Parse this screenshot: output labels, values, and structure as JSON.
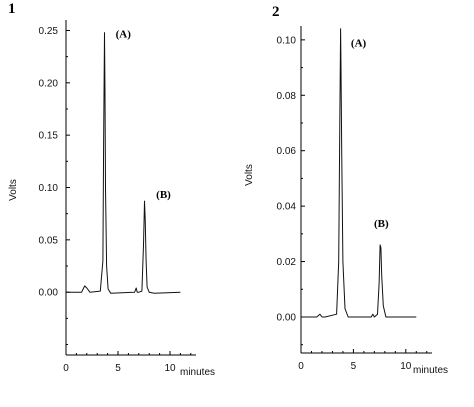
{
  "chart_data": [
    {
      "type": "line",
      "panel_label": "1",
      "xlabel": "minutes",
      "ylabel": "Volts",
      "xlim": [
        0,
        12.5
      ],
      "ylim": [
        -0.06,
        0.26
      ],
      "xticks": [
        0,
        5,
        10
      ],
      "xtick_labels": [
        "0",
        "5",
        "10"
      ],
      "yticks": [
        0.0,
        0.05,
        0.1,
        0.15,
        0.2,
        0.25
      ],
      "ytick_labels": [
        "0.00",
        "0.05",
        "0.10",
        "0.15",
        "0.20",
        "0.25"
      ],
      "annotations": [
        {
          "text": "(A)",
          "x": 4.0,
          "y": 0.247
        },
        {
          "text": "(B)",
          "x": 7.9,
          "y": 0.094
        }
      ],
      "series": [
        {
          "x": [
            0,
            1.5,
            1.8,
            2.0,
            2.3,
            3.3,
            3.55,
            3.62,
            3.7,
            3.75,
            3.8,
            3.9,
            4.05,
            4.3,
            6.6,
            6.75,
            6.85,
            7.0,
            7.3,
            7.45,
            7.55,
            7.62,
            7.7,
            7.8,
            8.0,
            8.5,
            11.0
          ],
          "y": [
            0.0,
            0.0,
            0.006,
            0.004,
            0.0,
            0.001,
            0.03,
            0.14,
            0.248,
            0.19,
            0.1,
            0.025,
            0.003,
            -0.001,
            0.0,
            0.004,
            0.0,
            0.0,
            0.001,
            0.045,
            0.087,
            0.07,
            0.03,
            0.005,
            0.0,
            -0.001,
            0.0
          ]
        }
      ]
    },
    {
      "type": "line",
      "panel_label": "2",
      "xlabel": "minutes",
      "ylabel": "Volts",
      "xlim": [
        0,
        12.5
      ],
      "ylim": [
        -0.013,
        0.105
      ],
      "xticks": [
        0,
        5,
        10
      ],
      "xtick_labels": [
        "0",
        "5",
        "10"
      ],
      "yticks": [
        0.0,
        0.02,
        0.04,
        0.06,
        0.08,
        0.1
      ],
      "ytick_labels": [
        "0.00",
        "0.02",
        "0.04",
        "0.06",
        "0.08",
        "0.10"
      ],
      "annotations": [
        {
          "text": "(A)",
          "x": 4.0,
          "y": 0.099
        },
        {
          "text": "(B)",
          "x": 6.2,
          "y": 0.034
        }
      ],
      "series": [
        {
          "x": [
            0,
            1.5,
            1.8,
            2.0,
            2.3,
            3.4,
            3.6,
            3.7,
            3.78,
            3.82,
            3.88,
            4.0,
            4.2,
            4.5,
            6.7,
            6.85,
            7.0,
            7.3,
            7.45,
            7.55,
            7.62,
            7.7,
            7.85,
            8.1,
            8.5,
            11.0
          ],
          "y": [
            0.0,
            0.0,
            0.001,
            0.0,
            0.0,
            0.001,
            0.02,
            0.07,
            0.104,
            0.09,
            0.06,
            0.02,
            0.003,
            0.0,
            0.0,
            0.001,
            0.0,
            0.001,
            0.012,
            0.026,
            0.025,
            0.015,
            0.004,
            0.0,
            0.0,
            0.0
          ]
        }
      ]
    }
  ]
}
